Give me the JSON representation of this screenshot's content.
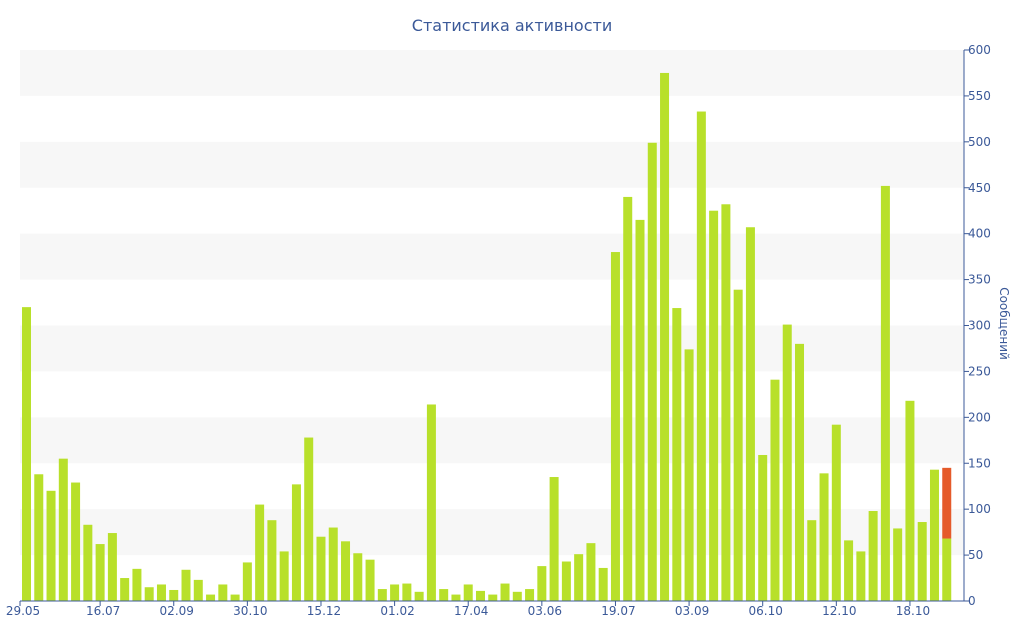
{
  "chart_data": {
    "type": "bar",
    "title": "Статистика активности",
    "ylabel": "Сообщений",
    "ylim": [
      0,
      600
    ],
    "yticks": [
      0,
      50,
      100,
      150,
      200,
      250,
      300,
      350,
      400,
      450,
      500,
      550,
      600
    ],
    "y_axis_side": "right",
    "grid": "alternating horizontal bands",
    "x_tick_labels": [
      "29.05",
      "16.07",
      "02.09",
      "30.10",
      "15.12",
      "01.02",
      "17.04",
      "03.06",
      "19.07",
      "03.09",
      "06.10",
      "12.10",
      "18.10"
    ],
    "x_tick_indices": [
      0,
      6,
      12,
      18,
      24,
      30,
      36,
      42,
      48,
      54,
      60,
      66,
      72
    ],
    "colors": {
      "bar": "#b8e02a",
      "highlight": "#e55a2a",
      "text": "#3b5998",
      "band": "#f7f7f7"
    },
    "values": [
      320,
      138,
      120,
      155,
      129,
      83,
      62,
      74,
      25,
      35,
      15,
      18,
      12,
      34,
      23,
      7,
      18,
      7,
      42,
      105,
      88,
      54,
      127,
      178,
      70,
      80,
      65,
      52,
      45,
      13,
      18,
      19,
      10,
      214,
      13,
      7,
      18,
      11,
      7,
      19,
      10,
      13,
      38,
      135,
      43,
      51,
      63,
      36,
      380,
      440,
      415,
      499,
      575,
      319,
      274,
      533,
      425,
      432,
      339,
      407,
      159,
      241,
      301,
      280,
      88,
      139,
      192,
      66,
      54,
      98,
      452,
      79,
      218,
      86,
      143,
      145
    ],
    "last_bar_split": {
      "lower": 68,
      "upper": 77
    }
  }
}
